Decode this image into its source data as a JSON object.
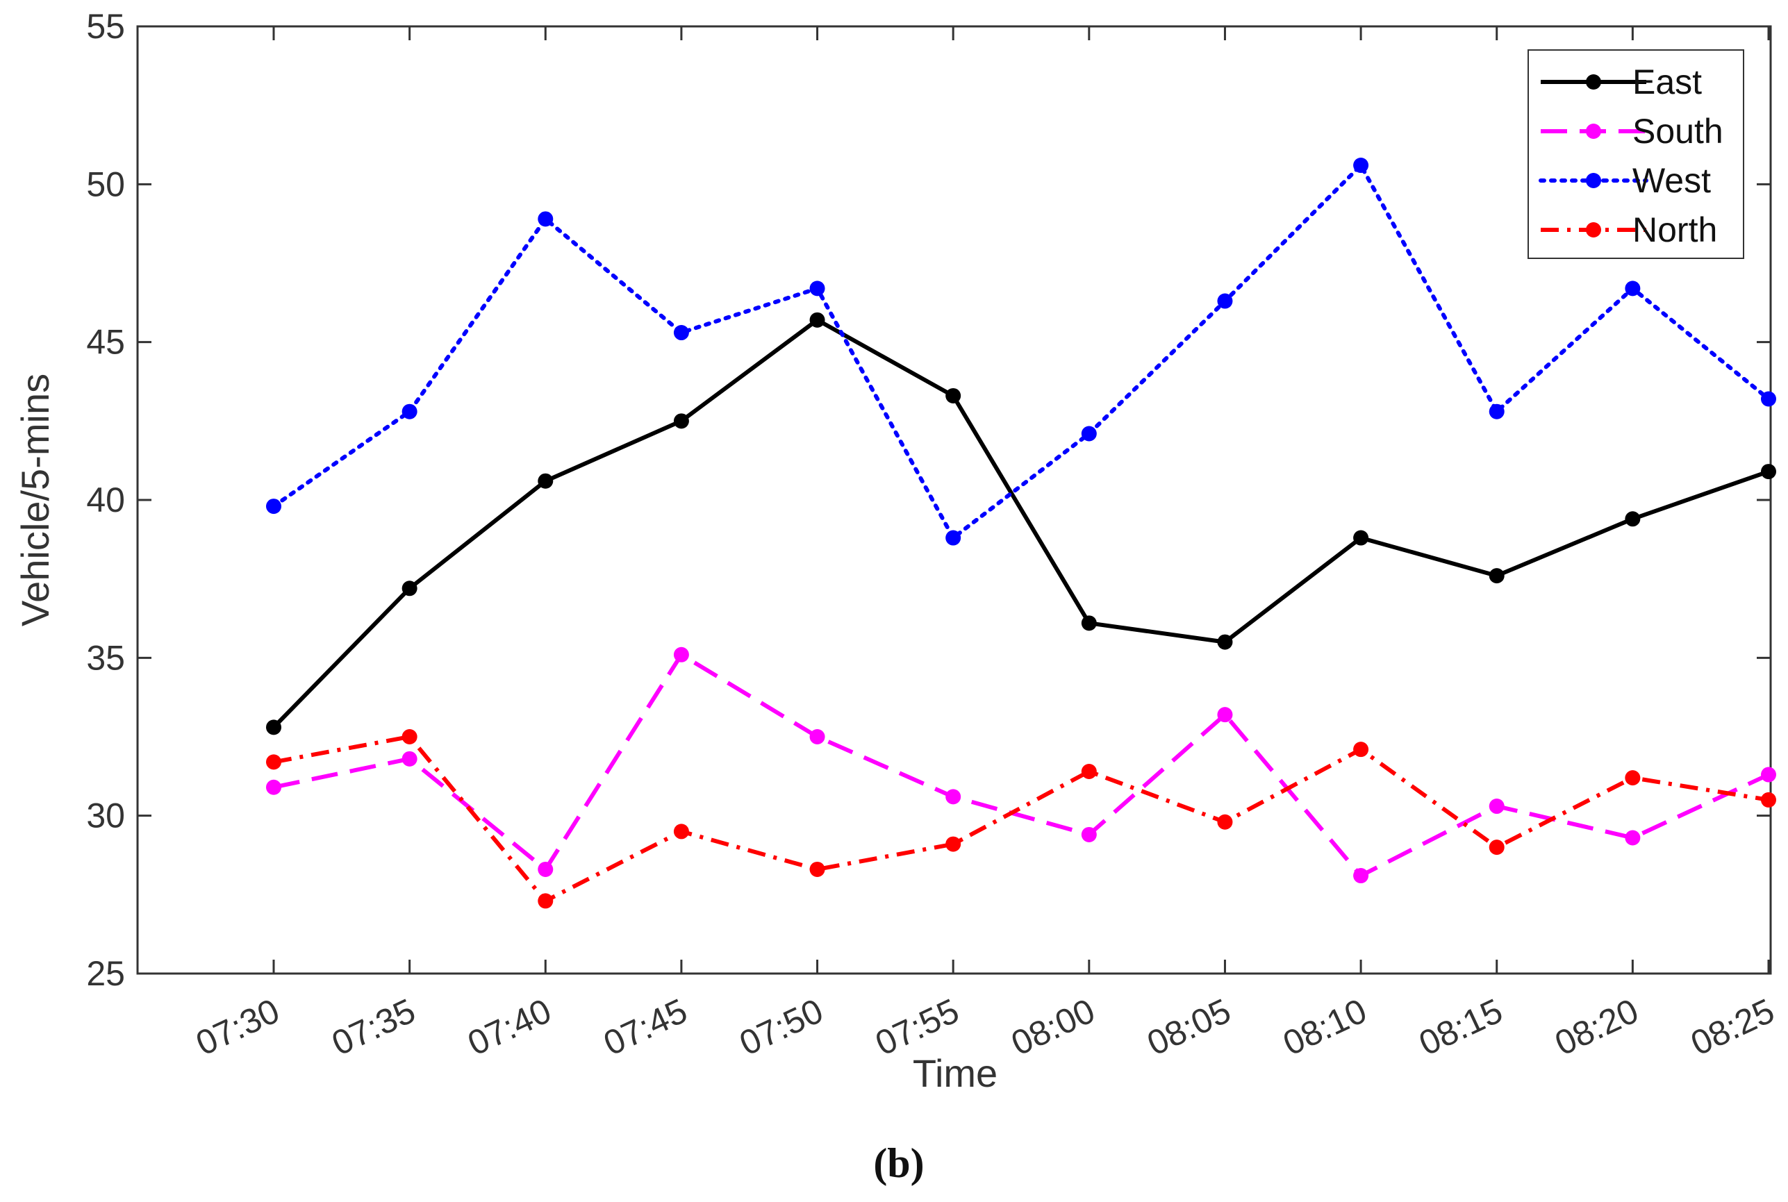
{
  "chart_data": {
    "type": "line",
    "title": "",
    "panel_label": "(b)",
    "xlabel": "Time",
    "ylabel": "Vehicle/5-mins",
    "ylim": [
      25,
      55
    ],
    "yticks": [
      "25",
      "30",
      "35",
      "40",
      "45",
      "50",
      "55"
    ],
    "categories": [
      "07:30",
      "07:35",
      "07:40",
      "07:45",
      "07:50",
      "07:55",
      "08:00",
      "08:05",
      "08:10",
      "08:15",
      "08:20",
      "08:25"
    ],
    "grid": false,
    "legend_position": "top-right",
    "series": [
      {
        "name": "East",
        "color": "#000000",
        "style": "solid",
        "values": [
          32.8,
          37.2,
          40.6,
          42.5,
          45.7,
          43.3,
          36.1,
          35.5,
          38.8,
          37.6,
          39.4,
          40.9
        ]
      },
      {
        "name": "South",
        "color": "#ff00ff",
        "style": "dashed",
        "values": [
          30.9,
          31.8,
          28.3,
          35.1,
          32.5,
          30.6,
          29.4,
          33.2,
          28.1,
          30.3,
          29.3,
          31.3
        ]
      },
      {
        "name": "West",
        "color": "#0000ff",
        "style": "dotted",
        "values": [
          39.8,
          42.8,
          48.9,
          45.3,
          46.7,
          38.8,
          42.1,
          46.3,
          50.6,
          42.8,
          46.7,
          43.2
        ]
      },
      {
        "name": "North",
        "color": "#ff0000",
        "style": "dashdot",
        "values": [
          31.7,
          32.5,
          27.3,
          29.5,
          28.3,
          29.1,
          31.4,
          29.8,
          32.1,
          29.0,
          31.2,
          30.5
        ]
      }
    ]
  }
}
